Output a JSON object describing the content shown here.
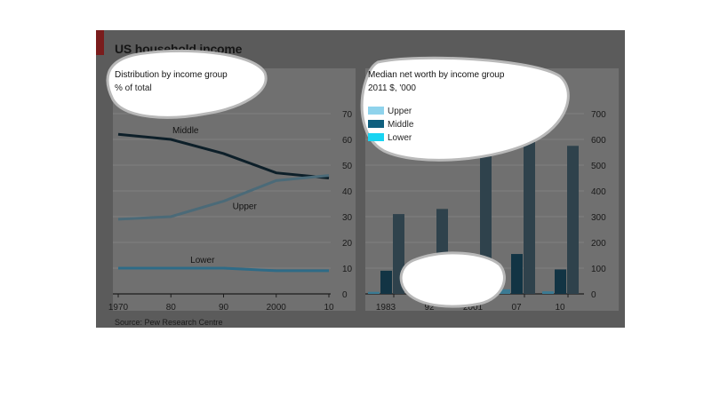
{
  "title": "US household income",
  "source": "Source: Pew Research Centre",
  "chart_data": [
    {
      "type": "line",
      "title": "Distribution by income group",
      "subtitle": "% of total",
      "x": [
        1970,
        1980,
        1990,
        2000,
        2010
      ],
      "x_tick_labels": [
        "1970",
        "80",
        "90",
        "2000",
        "10"
      ],
      "ylim": [
        0,
        70
      ],
      "y_ticks": [
        0,
        10,
        20,
        30,
        40,
        50,
        60,
        70
      ],
      "y_axis_side": "right",
      "series": [
        {
          "name": "Middle",
          "values": [
            62,
            60,
            54.5,
            47,
            45
          ],
          "color": "#0d1f29"
        },
        {
          "name": "Upper",
          "values": [
            29,
            30,
            36,
            44,
            46
          ],
          "color": "#4b6a78"
        },
        {
          "name": "Lower",
          "values": [
            10,
            10,
            10,
            9,
            9
          ],
          "color": "#2e6b87"
        }
      ],
      "grid": true
    },
    {
      "type": "bar",
      "title": "Median net worth by income group",
      "subtitle": "2011 $, '000",
      "categories": [
        "1983",
        "92",
        "2001",
        "07",
        "10"
      ],
      "ylim": [
        0,
        750
      ],
      "y_ticks": [
        0,
        100,
        200,
        300,
        400,
        500,
        600,
        700
      ],
      "y_axis_side": "right",
      "legend_position": "top-left",
      "series": [
        {
          "name": "Upper",
          "values": [
            310,
            330,
            570,
            690,
            575
          ],
          "color": "#2f424c"
        },
        {
          "name": "Middle",
          "values": [
            90,
            90,
            130,
            155,
            95
          ],
          "color": "#123444"
        },
        {
          "name": "Lower",
          "values": [
            8,
            10,
            15,
            18,
            10
          ],
          "color": "#3b7a93"
        }
      ],
      "legend_swatches": [
        {
          "name": "Upper",
          "color": "#8fd3ec"
        },
        {
          "name": "Middle",
          "color": "#0e5f7e"
        },
        {
          "name": "Lower",
          "color": "#18d4f2"
        }
      ],
      "grid": true
    }
  ]
}
